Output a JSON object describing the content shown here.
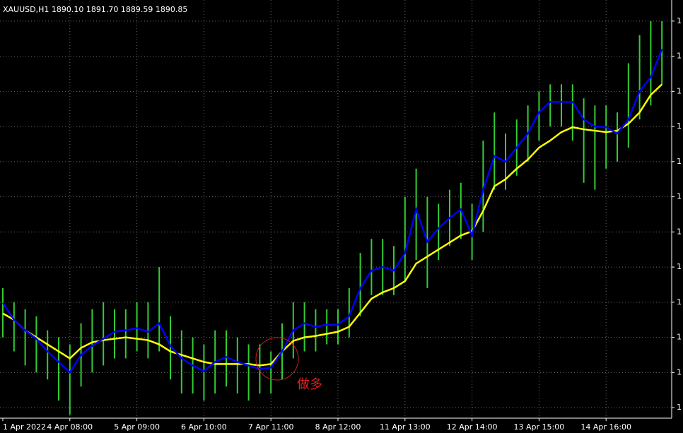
{
  "chart_data": {
    "type": "ohlc",
    "title": "XAUUSD,H1  1890.10 1891.70 1889.59 1890.85",
    "annotation": "做多",
    "categories": [
      "1 Apr 2022",
      null,
      null,
      null,
      null,
      null,
      "4 Apr 08:00",
      null,
      null,
      null,
      null,
      null,
      "5 Apr 09:00",
      null,
      null,
      null,
      null,
      null,
      "6 Apr 10:00",
      null,
      null,
      null,
      null,
      null,
      "7 Apr 11:00",
      null,
      null,
      null,
      null,
      null,
      "8 Apr 12:00",
      null,
      null,
      null,
      null,
      null,
      "11 Apr 13:00",
      null,
      null,
      null,
      null,
      null,
      "12 Apr 14:00",
      null,
      null,
      null,
      null,
      null,
      "13 Apr 15:00",
      null,
      null,
      null,
      null,
      null,
      "14 Apr 16:00",
      null,
      null,
      null,
      null,
      null
    ],
    "bars": {
      "color": "#32cd32",
      "high": [
        1937,
        1935,
        1934,
        1933,
        1931,
        1930,
        1929,
        1932,
        1934,
        1935,
        1934,
        1934,
        1935,
        1935,
        1940,
        1933,
        1931,
        1930,
        1929,
        1931,
        1931,
        1930,
        1929,
        1929,
        1928,
        1932,
        1935,
        1935,
        1934,
        1934,
        1934,
        1937,
        1942,
        1944,
        1944,
        1943,
        1950,
        1954,
        1950,
        1949,
        1951,
        1952,
        1949,
        1958,
        1962,
        1959,
        1961,
        1963,
        1965,
        1966,
        1966,
        1966,
        1964,
        1963,
        1963,
        1962,
        1969,
        1973,
        1975,
        1975
      ],
      "low": [
        1930,
        1928,
        1926,
        1925,
        1924,
        1921,
        1919,
        1923,
        1925,
        1926,
        1927,
        1927,
        1928,
        1927,
        1928,
        1924,
        1922,
        1922,
        1921,
        1922,
        1923,
        1922,
        1921,
        1922,
        1922,
        1924,
        1927,
        1928,
        1928,
        1929,
        1929,
        1930,
        1933,
        1936,
        1936,
        1936,
        1938,
        1941,
        1937,
        1941,
        1943,
        1944,
        1941,
        1945,
        1951,
        1951,
        1953,
        1955,
        1958,
        1960,
        1960,
        1958,
        1952,
        1951,
        1954,
        1955,
        1957,
        1961,
        1963,
        1966
      ]
    },
    "series": [
      {
        "color": "#0000ff",
        "values": [
          1934.9,
          1932.5,
          1931,
          1929.8,
          1928,
          1926.5,
          1925,
          1927.5,
          1928.8,
          1929.8,
          1930.8,
          1931,
          1931.3,
          1930.8,
          1932,
          1928.8,
          1927,
          1926,
          1925.2,
          1926.5,
          1927.2,
          1926.5,
          1926,
          1925.5,
          1925.7,
          1928,
          1931,
          1932,
          1931.5,
          1931.8,
          1931.8,
          1933,
          1937,
          1939.5,
          1940,
          1939.5,
          1942,
          1948.2,
          1943.6,
          1945.5,
          1947,
          1948.2,
          1944.5,
          1951,
          1955.8,
          1955,
          1957,
          1959,
          1962,
          1963.5,
          1963.5,
          1963.5,
          1961,
          1960,
          1959.9,
          1959,
          1961,
          1965,
          1967,
          1971
        ]
      },
      {
        "color": "#ffff00",
        "values": [
          1933.4,
          1932.5,
          1931,
          1930,
          1929,
          1928,
          1927,
          1928.5,
          1929.3,
          1929.6,
          1929.8,
          1930,
          1929.8,
          1929.6,
          1929,
          1928,
          1927.5,
          1927,
          1926.5,
          1926.2,
          1926.2,
          1926.2,
          1926.2,
          1926,
          1926.2,
          1928,
          1929.5,
          1930,
          1930.2,
          1930.5,
          1930.8,
          1931.5,
          1933.5,
          1935.5,
          1936.4,
          1937,
          1938,
          1940.5,
          1941.5,
          1942.5,
          1943.5,
          1944.5,
          1945.1,
          1948,
          1951.5,
          1952.5,
          1954,
          1955.3,
          1957,
          1958,
          1959.2,
          1959.9,
          1959.6,
          1959.4,
          1959.2,
          1959.4,
          1960.4,
          1962,
          1964.5,
          1966
        ]
      }
    ],
    "ylim": [
      1918.5,
      1978
    ],
    "yticks": [
      {
        "value": 1920,
        "label": "1"
      },
      {
        "value": 1925,
        "label": "1"
      },
      {
        "value": 1930,
        "label": "1"
      },
      {
        "value": 1935,
        "label": "1"
      },
      {
        "value": 1940,
        "label": "1"
      },
      {
        "value": 1945,
        "label": "1"
      },
      {
        "value": 1950,
        "label": "1"
      },
      {
        "value": 1955,
        "label": "1"
      },
      {
        "value": 1960,
        "label": "1"
      },
      {
        "value": 1965,
        "label": "1"
      },
      {
        "value": 1970,
        "label": "1"
      },
      {
        "value": 1975,
        "label": "1"
      }
    ],
    "grid": true
  }
}
